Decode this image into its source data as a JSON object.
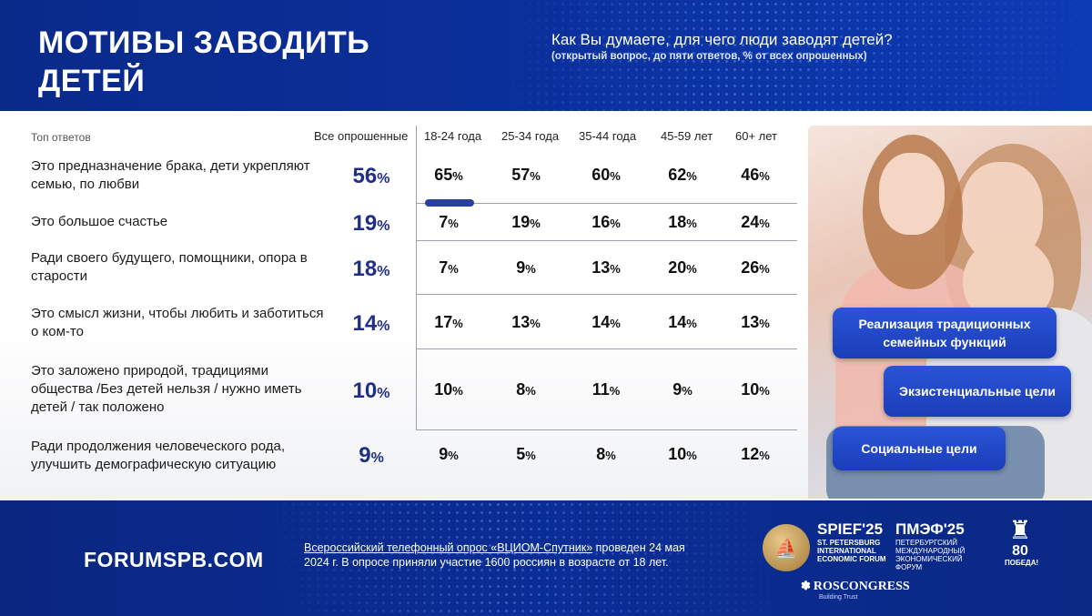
{
  "header": {
    "title_line1": "МОТИВЫ ЗАВОДИТЬ",
    "title_line2": "ДЕТЕЙ",
    "question": "Как Вы думаете, для чего люди заводят детей?",
    "question_note": "(открытый вопрос, до пяти ответов, % от всех опрошенных)"
  },
  "chart_data": {
    "type": "table",
    "title": "Мотивы заводить детей",
    "row_header": "Топ ответов",
    "columns": [
      "Все опрошенные",
      "18-24 года",
      "25-34 года",
      "35-44 года",
      "45-59 лет",
      "60+ лет"
    ],
    "unit": "%",
    "rows": [
      {
        "label": "Это предназначение брака, дети укрепляют семью, по любви",
        "values": [
          56,
          65,
          57,
          60,
          62,
          46
        ]
      },
      {
        "label": "Это большое счастье",
        "values": [
          19,
          7,
          19,
          16,
          18,
          24
        ]
      },
      {
        "label": "Ради своего будущего, помощники, опора в старости",
        "values": [
          18,
          7,
          9,
          13,
          20,
          26
        ]
      },
      {
        "label": "Это смысл жизни, чтобы любить и заботиться о ком-то",
        "values": [
          14,
          17,
          13,
          14,
          14,
          13
        ]
      },
      {
        "label": "Это заложено природой, традициями общества /Без детей нельзя / нужно иметь детей / так положено",
        "values": [
          10,
          10,
          8,
          11,
          9,
          10
        ]
      },
      {
        "label": "Ради продолжения человеческого рода, улучшить демографическую ситуацию",
        "values": [
          9,
          9,
          5,
          8,
          10,
          12
        ]
      }
    ],
    "highlight_color": "#27409f"
  },
  "bubbles": {
    "b1": "Реализация традиционных семейных функций",
    "b2": "Экзистенциальные цели",
    "b3": "Социальные цели"
  },
  "footer": {
    "site": "FORUMSPB.COM",
    "source_link": "Всероссийский телефонный опрос «ВЦИОМ-Спутник»",
    "source_rest": " проведен 24 мая 2024 г. В опросе приняли участие 1600 россиян в возрасте от 18 лет.",
    "spief": "SPIEF'25",
    "spief_sub": "ST. PETERSBURG INTERNATIONAL ECONOMIC FORUM",
    "pmef": "ПМЭФ'25",
    "pmef_sub": "ПЕТЕРБУРГСКИЙ МЕЖДУНАРОДНЫЙ ЭКОНОМИЧЕСКИЙ ФОРУМ",
    "roscongress": "ROSCONGRESS",
    "roscongress_sub": "Building Trust",
    "pobeda_num": "80",
    "pobeda_txt": "ПОБЕДА!"
  },
  "colors": {
    "brand_blue": "#0b2f9a",
    "accent_blue": "#1f2f86",
    "bubble_blue": "#1b3db8"
  }
}
